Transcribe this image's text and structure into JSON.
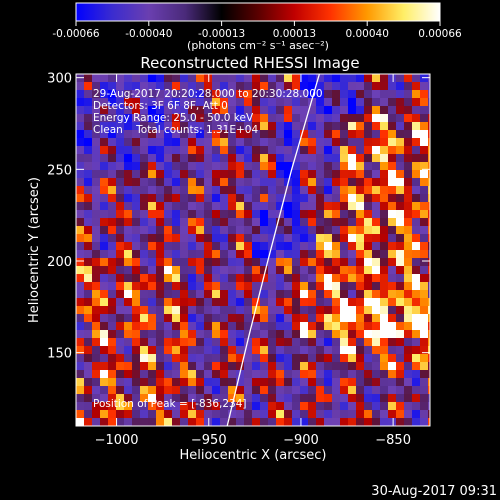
{
  "colorbar": {
    "ticks": [
      "-0.00066",
      "-0.00040",
      "-0.00013",
      "0.00013",
      "0.00040",
      "0.00066"
    ],
    "units_text": "(photons cm⁻² s⁻¹ asec⁻²)",
    "colors": [
      "#0000ff",
      "#3b2ccf",
      "#6a3fb0",
      "#4a2a7a",
      "#000000",
      "#5a0000",
      "#c00000",
      "#ff3300",
      "#ff9900",
      "#ffee66",
      "#ffffff"
    ]
  },
  "chart_data": {
    "type": "heatmap",
    "title": "Reconstructed RHESSI Image",
    "xlabel": "Heliocentric X (arcsec)",
    "ylabel": "Heliocentric Y (arcsec)",
    "xlim": [
      -1022,
      -830
    ],
    "ylim": [
      110,
      302
    ],
    "x_ticks": [
      {
        "value": -1000,
        "label": "−1000"
      },
      {
        "value": -950,
        "label": "−950"
      },
      {
        "value": -900,
        "label": "−900"
      },
      {
        "value": -850,
        "label": "−850"
      }
    ],
    "y_ticks": [
      {
        "value": 150,
        "label": "150"
      },
      {
        "value": 200,
        "label": "200"
      },
      {
        "value": 250,
        "label": "250"
      },
      {
        "value": 300,
        "label": "300"
      }
    ],
    "annotations": [
      "29-Aug-2017 20:20:28.000 to 20:30:28.000",
      "Detectors: 3F 6F 8F, Att 0",
      "Energy Range: 25.0 - 50.0 keV",
      "Clean    Total counts: 1.31E+04"
    ],
    "peak_text": "Position of Peak = [-836,234]",
    "peak": [
      -836,
      234
    ],
    "limb_points": [
      [
        -940,
        110
      ],
      [
        -928,
        160
      ],
      [
        -918,
        200
      ],
      [
        -905,
        250
      ],
      [
        -890,
        302
      ]
    ],
    "grid": false
  },
  "footer": {
    "timestamp": "30-Aug-2017 09:31"
  }
}
